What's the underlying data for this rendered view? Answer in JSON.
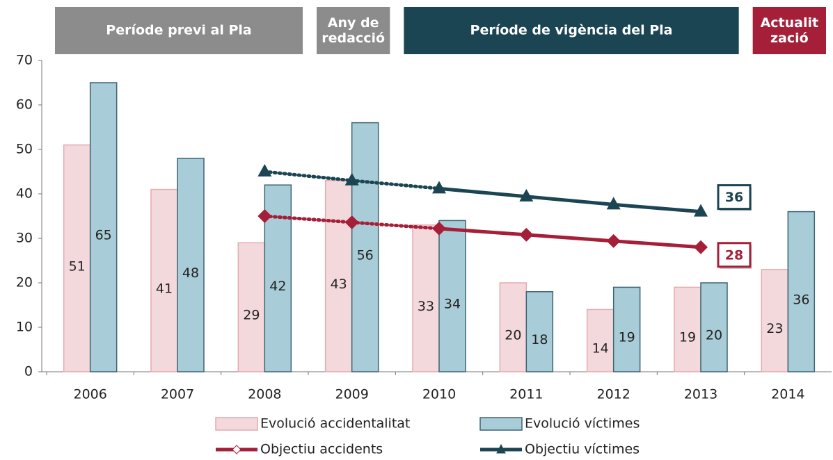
{
  "chart_data": {
    "type": "bar_line",
    "headers": [
      {
        "label": "Període previ al Pla",
        "color": "#8c8c8c",
        "span": [
          0,
          2
        ]
      },
      {
        "label": "Any de\nredacció",
        "color": "#8c8c8c",
        "span": [
          3,
          3
        ]
      },
      {
        "label": "Període de vigència del Pla",
        "color": "#1c4553",
        "span": [
          4,
          7
        ]
      },
      {
        "label": "Actualit\nzació",
        "color": "#a51f38",
        "span": [
          8,
          8
        ]
      }
    ],
    "categories": [
      "2006",
      "2007",
      "2008",
      "2009",
      "2010",
      "2011",
      "2012",
      "2013",
      "2014"
    ],
    "series": [
      {
        "name": "Evolució accidentalitat",
        "kind": "bar",
        "color": "#f4d9dc",
        "values": [
          51,
          41,
          29,
          43,
          33,
          20,
          14,
          19,
          23
        ]
      },
      {
        "name": "Evolució víctimes",
        "kind": "bar",
        "color": "#a9cdd8",
        "values": [
          65,
          48,
          42,
          56,
          34,
          18,
          19,
          20,
          36
        ]
      },
      {
        "name": "Objectiu accidents",
        "kind": "line",
        "marker": "diamond",
        "color": "#a51f38",
        "values": [
          null,
          null,
          35,
          33.6,
          32.2,
          30.8,
          29.4,
          28,
          null
        ]
      },
      {
        "name": "Objectiu víctimes",
        "kind": "line",
        "marker": "triangle",
        "color": "#1c4553",
        "values": [
          null,
          null,
          45,
          43,
          41.2,
          39.4,
          37.6,
          36,
          null
        ]
      }
    ],
    "ylim": [
      0,
      70
    ],
    "yticks": [
      0,
      10,
      20,
      30,
      40,
      50,
      60,
      70
    ]
  }
}
